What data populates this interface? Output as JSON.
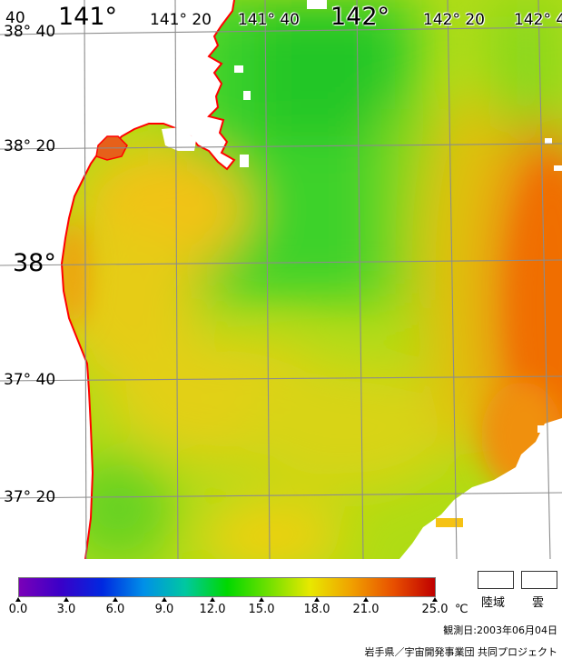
{
  "map": {
    "longitude_labels": [
      {
        "text": "40",
        "size": "sm",
        "halo": false
      },
      {
        "text": "141°",
        "size": "big",
        "halo": false
      },
      {
        "text": "141° 20",
        "size": "sm",
        "halo": false
      },
      {
        "text": "141° 40",
        "size": "sm",
        "halo": true
      },
      {
        "text": "142°",
        "size": "big",
        "halo": true
      },
      {
        "text": "142° 20",
        "size": "sm",
        "halo": true
      },
      {
        "text": "142° 4",
        "size": "sm",
        "halo": true
      }
    ],
    "latitude_labels": [
      {
        "text": "38° 40",
        "size": "sm"
      },
      {
        "text": "38° 20",
        "size": "sm"
      },
      {
        "text": "38°",
        "size": "big"
      },
      {
        "text": "37° 40",
        "size": "sm"
      },
      {
        "text": "37° 20",
        "size": "sm"
      }
    ],
    "colors": {
      "land": "#ffffff",
      "coastline": "#ff0000",
      "graticule": "#8c8c8c",
      "cloud": "#ffffff"
    }
  },
  "legend": {
    "ticks": [
      "0.0",
      "3.0",
      "6.0",
      "9.0",
      "12.0",
      "15.0",
      "18.0",
      "21.0",
      "25.0"
    ],
    "unit": "℃",
    "swatches": [
      {
        "label": "陸域",
        "color": "#ffffff"
      },
      {
        "label": "雲",
        "color": "#ffffff"
      }
    ],
    "gradient_colors": [
      "#7a00b8",
      "#3a00c8",
      "#0028e0",
      "#0090e8",
      "#00c8a0",
      "#00d800",
      "#70e000",
      "#e8e800",
      "#f0a000",
      "#e85000",
      "#c00000"
    ]
  },
  "observation_date": "観測日:2003年06月04日",
  "credit": "岩手県／宇宙開発事業団 共同プロジェクト"
}
